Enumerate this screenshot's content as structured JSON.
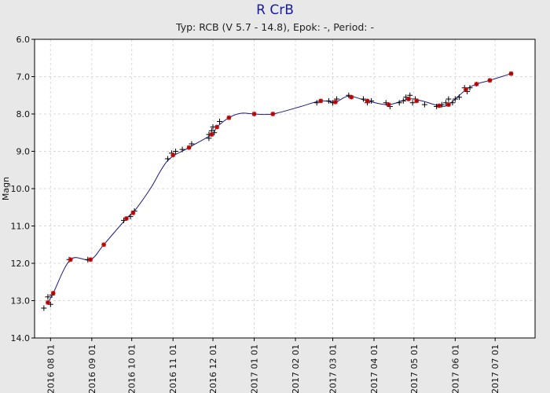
{
  "chart_data": {
    "type": "scatter",
    "title": "R CrB",
    "subtitle": "Typ: RCB (V 5.7 - 14.8), Epok: -, Period: -",
    "ylabel": "Magn",
    "xlabel": "",
    "ylim": [
      6.0,
      14.0
    ],
    "y_inverted": true,
    "xlim": [
      "2016-07-20",
      "2017-07-31"
    ],
    "grid": true,
    "y_ticks": [
      "6.0",
      "7.0",
      "8.0",
      "9.0",
      "10.0",
      "11.0",
      "12.0",
      "13.0",
      "14.0"
    ],
    "x_ticks": [
      {
        "date": "2016-08-01",
        "label": "2016 08 01"
      },
      {
        "date": "2016-09-01",
        "label": "2016 09 01"
      },
      {
        "date": "2016-10-01",
        "label": "2016 10 01"
      },
      {
        "date": "2016-11-01",
        "label": "2016 11 01"
      },
      {
        "date": "2016-12-01",
        "label": "2016 12 01"
      },
      {
        "date": "2017-01-01",
        "label": "2017 01 01"
      },
      {
        "date": "2017-02-01",
        "label": "2017 02 01"
      },
      {
        "date": "2017-03-01",
        "label": "2017 03 01"
      },
      {
        "date": "2017-04-01",
        "label": "2017 04 01"
      },
      {
        "date": "2017-05-01",
        "label": "2017 05 01"
      },
      {
        "date": "2017-06-01",
        "label": "2017 06 01"
      },
      {
        "date": "2017-07-01",
        "label": "2017 07 01"
      }
    ],
    "colors": {
      "curve": "#1a1a8c",
      "observation": "#000000",
      "mean": "#e01010",
      "background": "#ffffff"
    },
    "series": [
      {
        "points": [
          [
            "2016-07-27",
            13.2
          ],
          [
            "2016-07-30",
            12.9
          ],
          [
            "2016-08-01",
            13.1
          ],
          [
            "2016-08-02",
            12.85
          ],
          [
            "2016-08-15",
            11.9
          ],
          [
            "2016-08-29",
            11.9
          ],
          [
            "2016-09-25",
            10.85
          ],
          [
            "2016-09-30",
            10.75
          ],
          [
            "2016-10-03",
            10.6
          ],
          [
            "2016-10-28",
            9.2
          ],
          [
            "2016-10-31",
            9.05
          ],
          [
            "2016-11-03",
            9.0
          ],
          [
            "2016-11-08",
            8.95
          ],
          [
            "2016-11-15",
            8.8
          ],
          [
            "2016-11-28",
            8.55
          ],
          [
            "2016-11-28",
            8.65
          ],
          [
            "2016-11-30",
            8.45
          ],
          [
            "2016-12-01",
            8.35
          ],
          [
            "2016-12-02",
            8.5
          ],
          [
            "2016-12-06",
            8.2
          ],
          [
            "2017-02-17",
            7.7
          ],
          [
            "2017-02-26",
            7.65
          ],
          [
            "2017-03-01",
            7.7
          ],
          [
            "2017-03-04",
            7.6
          ],
          [
            "2017-03-13",
            7.5
          ],
          [
            "2017-03-24",
            7.6
          ],
          [
            "2017-03-27",
            7.7
          ],
          [
            "2017-03-30",
            7.65
          ],
          [
            "2017-04-10",
            7.7
          ],
          [
            "2017-04-13",
            7.8
          ],
          [
            "2017-04-20",
            7.7
          ],
          [
            "2017-04-23",
            7.65
          ],
          [
            "2017-04-25",
            7.55
          ],
          [
            "2017-04-28",
            7.5
          ],
          [
            "2017-04-30",
            7.7
          ],
          [
            "2017-05-02",
            7.6
          ],
          [
            "2017-05-09",
            7.75
          ],
          [
            "2017-05-18",
            7.8
          ],
          [
            "2017-05-22",
            7.75
          ],
          [
            "2017-05-25",
            7.7
          ],
          [
            "2017-05-27",
            7.6
          ],
          [
            "2017-05-30",
            7.7
          ],
          [
            "2017-06-01",
            7.6
          ],
          [
            "2017-06-04",
            7.55
          ],
          [
            "2017-06-08",
            7.3
          ],
          [
            "2017-06-10",
            7.4
          ],
          [
            "2017-06-12",
            7.3
          ]
        ]
      },
      {
        "points": [
          [
            "2016-07-30",
            13.05
          ],
          [
            "2016-08-03",
            12.8
          ],
          [
            "2016-08-16",
            11.9
          ],
          [
            "2016-08-31",
            11.9
          ],
          [
            "2016-09-10",
            11.5
          ],
          [
            "2016-09-27",
            10.8
          ],
          [
            "2016-10-02",
            10.65
          ],
          [
            "2016-11-01",
            9.1
          ],
          [
            "2016-11-13",
            8.9
          ],
          [
            "2016-11-30",
            8.55
          ],
          [
            "2016-12-04",
            8.35
          ],
          [
            "2016-12-13",
            8.1
          ],
          [
            "2017-01-01",
            8.0
          ],
          [
            "2017-01-15",
            8.0
          ],
          [
            "2017-02-20",
            7.65
          ],
          [
            "2017-03-03",
            7.68
          ],
          [
            "2017-03-15",
            7.55
          ],
          [
            "2017-03-27",
            7.65
          ],
          [
            "2017-04-12",
            7.75
          ],
          [
            "2017-04-27",
            7.6
          ],
          [
            "2017-05-03",
            7.65
          ],
          [
            "2017-05-20",
            7.78
          ],
          [
            "2017-05-27",
            7.75
          ],
          [
            "2017-06-09",
            7.35
          ],
          [
            "2017-06-17",
            7.2
          ],
          [
            "2017-06-27",
            7.1
          ],
          [
            "2017-07-13",
            6.92
          ]
        ]
      },
      {
        "points": [
          [
            "2016-07-30",
            13.05
          ],
          [
            "2016-08-03",
            12.8
          ],
          [
            "2016-08-16",
            11.9
          ],
          [
            "2016-08-31",
            11.9
          ],
          [
            "2016-09-10",
            11.5
          ],
          [
            "2016-09-27",
            10.8
          ],
          [
            "2016-10-03",
            10.6
          ],
          [
            "2016-10-15",
            10.0
          ],
          [
            "2016-10-28",
            9.25
          ],
          [
            "2016-11-13",
            8.9
          ],
          [
            "2016-11-30",
            8.55
          ],
          [
            "2016-12-04",
            8.35
          ],
          [
            "2016-12-13",
            8.1
          ],
          [
            "2016-12-22",
            7.98
          ],
          [
            "2017-01-01",
            8.0
          ],
          [
            "2017-01-15",
            8.0
          ],
          [
            "2017-02-05",
            7.8
          ],
          [
            "2017-02-20",
            7.65
          ],
          [
            "2017-03-03",
            7.68
          ],
          [
            "2017-03-13",
            7.52
          ],
          [
            "2017-03-27",
            7.65
          ],
          [
            "2017-04-12",
            7.75
          ],
          [
            "2017-04-27",
            7.6
          ],
          [
            "2017-05-07",
            7.65
          ],
          [
            "2017-05-20",
            7.78
          ],
          [
            "2017-05-27",
            7.75
          ],
          [
            "2017-06-09",
            7.35
          ],
          [
            "2017-06-17",
            7.2
          ],
          [
            "2017-06-27",
            7.1
          ],
          [
            "2017-07-13",
            6.92
          ]
        ]
      }
    ]
  }
}
